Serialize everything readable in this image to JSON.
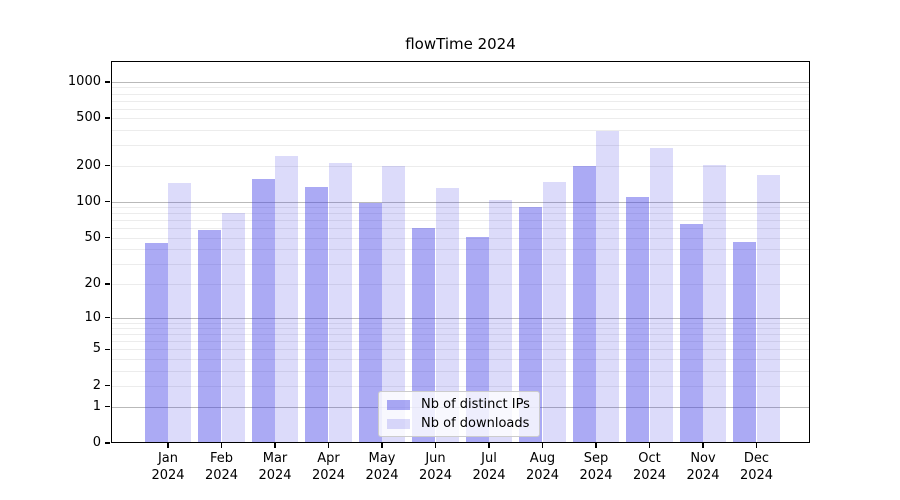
{
  "chart_data": {
    "type": "bar",
    "title": "flowTime 2024",
    "categories": [
      "Jan",
      "Feb",
      "Mar",
      "Apr",
      "May",
      "Jun",
      "Jul",
      "Aug",
      "Sep",
      "Oct",
      "Nov",
      "Dec"
    ],
    "x_year": "2024",
    "series": [
      {
        "name": "Nb of distinct IPs",
        "color_hex": "#ABAAF6",
        "rgba": "rgba(60,58,230,0.43)",
        "values": [
          45,
          58,
          155,
          132,
          97,
          60,
          51,
          90,
          199,
          110,
          65,
          46
        ]
      },
      {
        "name": "Nb of downloads",
        "color_hex": "#DCDBF8",
        "rgba": "rgba(60,58,230,0.18)",
        "values": [
          145,
          81,
          240,
          210,
          200,
          131,
          103,
          147,
          390,
          280,
          205,
          168
        ]
      }
    ],
    "y_scale": "log1p",
    "ylim": [
      0,
      1491
    ],
    "y_ticks": [
      0,
      1,
      2,
      5,
      10,
      20,
      50,
      100,
      200,
      500,
      1000
    ],
    "y_tick_labels": [
      "0",
      "1",
      "2",
      "5",
      "10",
      "20",
      "50",
      "100",
      "200",
      "500",
      "1000"
    ],
    "grid": true,
    "legend_position": "lower center inside",
    "axis_color": "#000000",
    "grid_major_color": "#b9b9b9",
    "grid_minor_color": "#ececec",
    "background_color": "#ffffff"
  }
}
